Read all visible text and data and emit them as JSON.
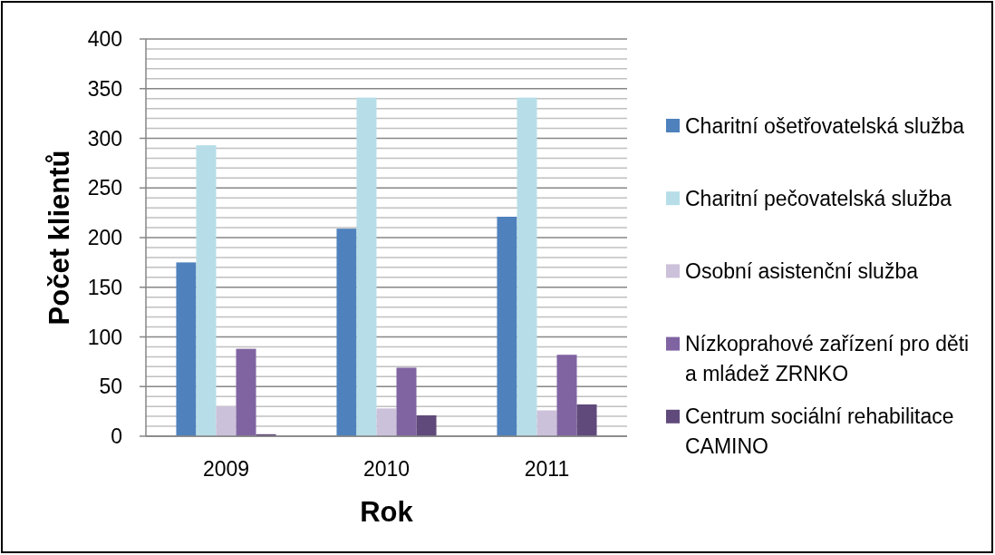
{
  "chart_data": {
    "type": "bar",
    "xlabel": "Rok",
    "ylabel": "Počet klientů",
    "categories": [
      "2009",
      "2010",
      "2011"
    ],
    "series": [
      {
        "name": "Charitní ošetřovatelská služba",
        "color": "#4f81bd",
        "values": [
          175,
          209,
          221
        ]
      },
      {
        "name": "Charitní pečovatelská služba",
        "color": "#b7dee8",
        "values": [
          293,
          341,
          341
        ]
      },
      {
        "name": "Osobní asistenční služba",
        "color": "#ccc1da",
        "values": [
          30,
          28,
          26
        ]
      },
      {
        "name": "Nízkoprahové zařízení pro děti a mládež ZRNKO",
        "color": "#8064a2",
        "values": [
          88,
          69,
          82
        ]
      },
      {
        "name": "Centrum sociální rehabilitace CAMINO",
        "color": "#604a7b",
        "values": [
          2,
          21,
          32
        ]
      }
    ],
    "ylim": [
      0,
      400
    ],
    "yticks": [
      0,
      {
        "value": 10,
        "label": null
      },
      {
        "value": 20,
        "label": null
      },
      {
        "value": 30,
        "label": null
      },
      {
        "value": 40,
        "label": null
      },
      50,
      {
        "value": 60,
        "label": null
      },
      {
        "value": 70,
        "label": null
      },
      {
        "value": 80,
        "label": null
      },
      {
        "value": 90,
        "label": null
      },
      100,
      {
        "value": 110,
        "label": null
      },
      {
        "value": 120,
        "label": null
      },
      {
        "value": 130,
        "label": null
      },
      {
        "value": 140,
        "label": null
      },
      150,
      {
        "value": 160,
        "label": null
      },
      {
        "value": 170,
        "label": null
      },
      {
        "value": 180,
        "label": null
      },
      {
        "value": 190,
        "label": null
      },
      200,
      {
        "value": 210,
        "label": null
      },
      {
        "value": 220,
        "label": null
      },
      {
        "value": 230,
        "label": null
      },
      {
        "value": 240,
        "label": null
      },
      250,
      {
        "value": 260,
        "label": null
      },
      {
        "value": 270,
        "label": null
      },
      {
        "value": 280,
        "label": null
      },
      {
        "value": 290,
        "label": null
      },
      300,
      {
        "value": 310,
        "label": null
      },
      {
        "value": 320,
        "label": null
      },
      {
        "value": 330,
        "label": null
      },
      {
        "value": 340,
        "label": null
      },
      350,
      {
        "value": 360,
        "label": null
      },
      {
        "value": 370,
        "label": null
      },
      {
        "value": 380,
        "label": null
      },
      {
        "value": 390,
        "label": null
      },
      400
    ],
    "grid": "y",
    "legend": "right"
  }
}
